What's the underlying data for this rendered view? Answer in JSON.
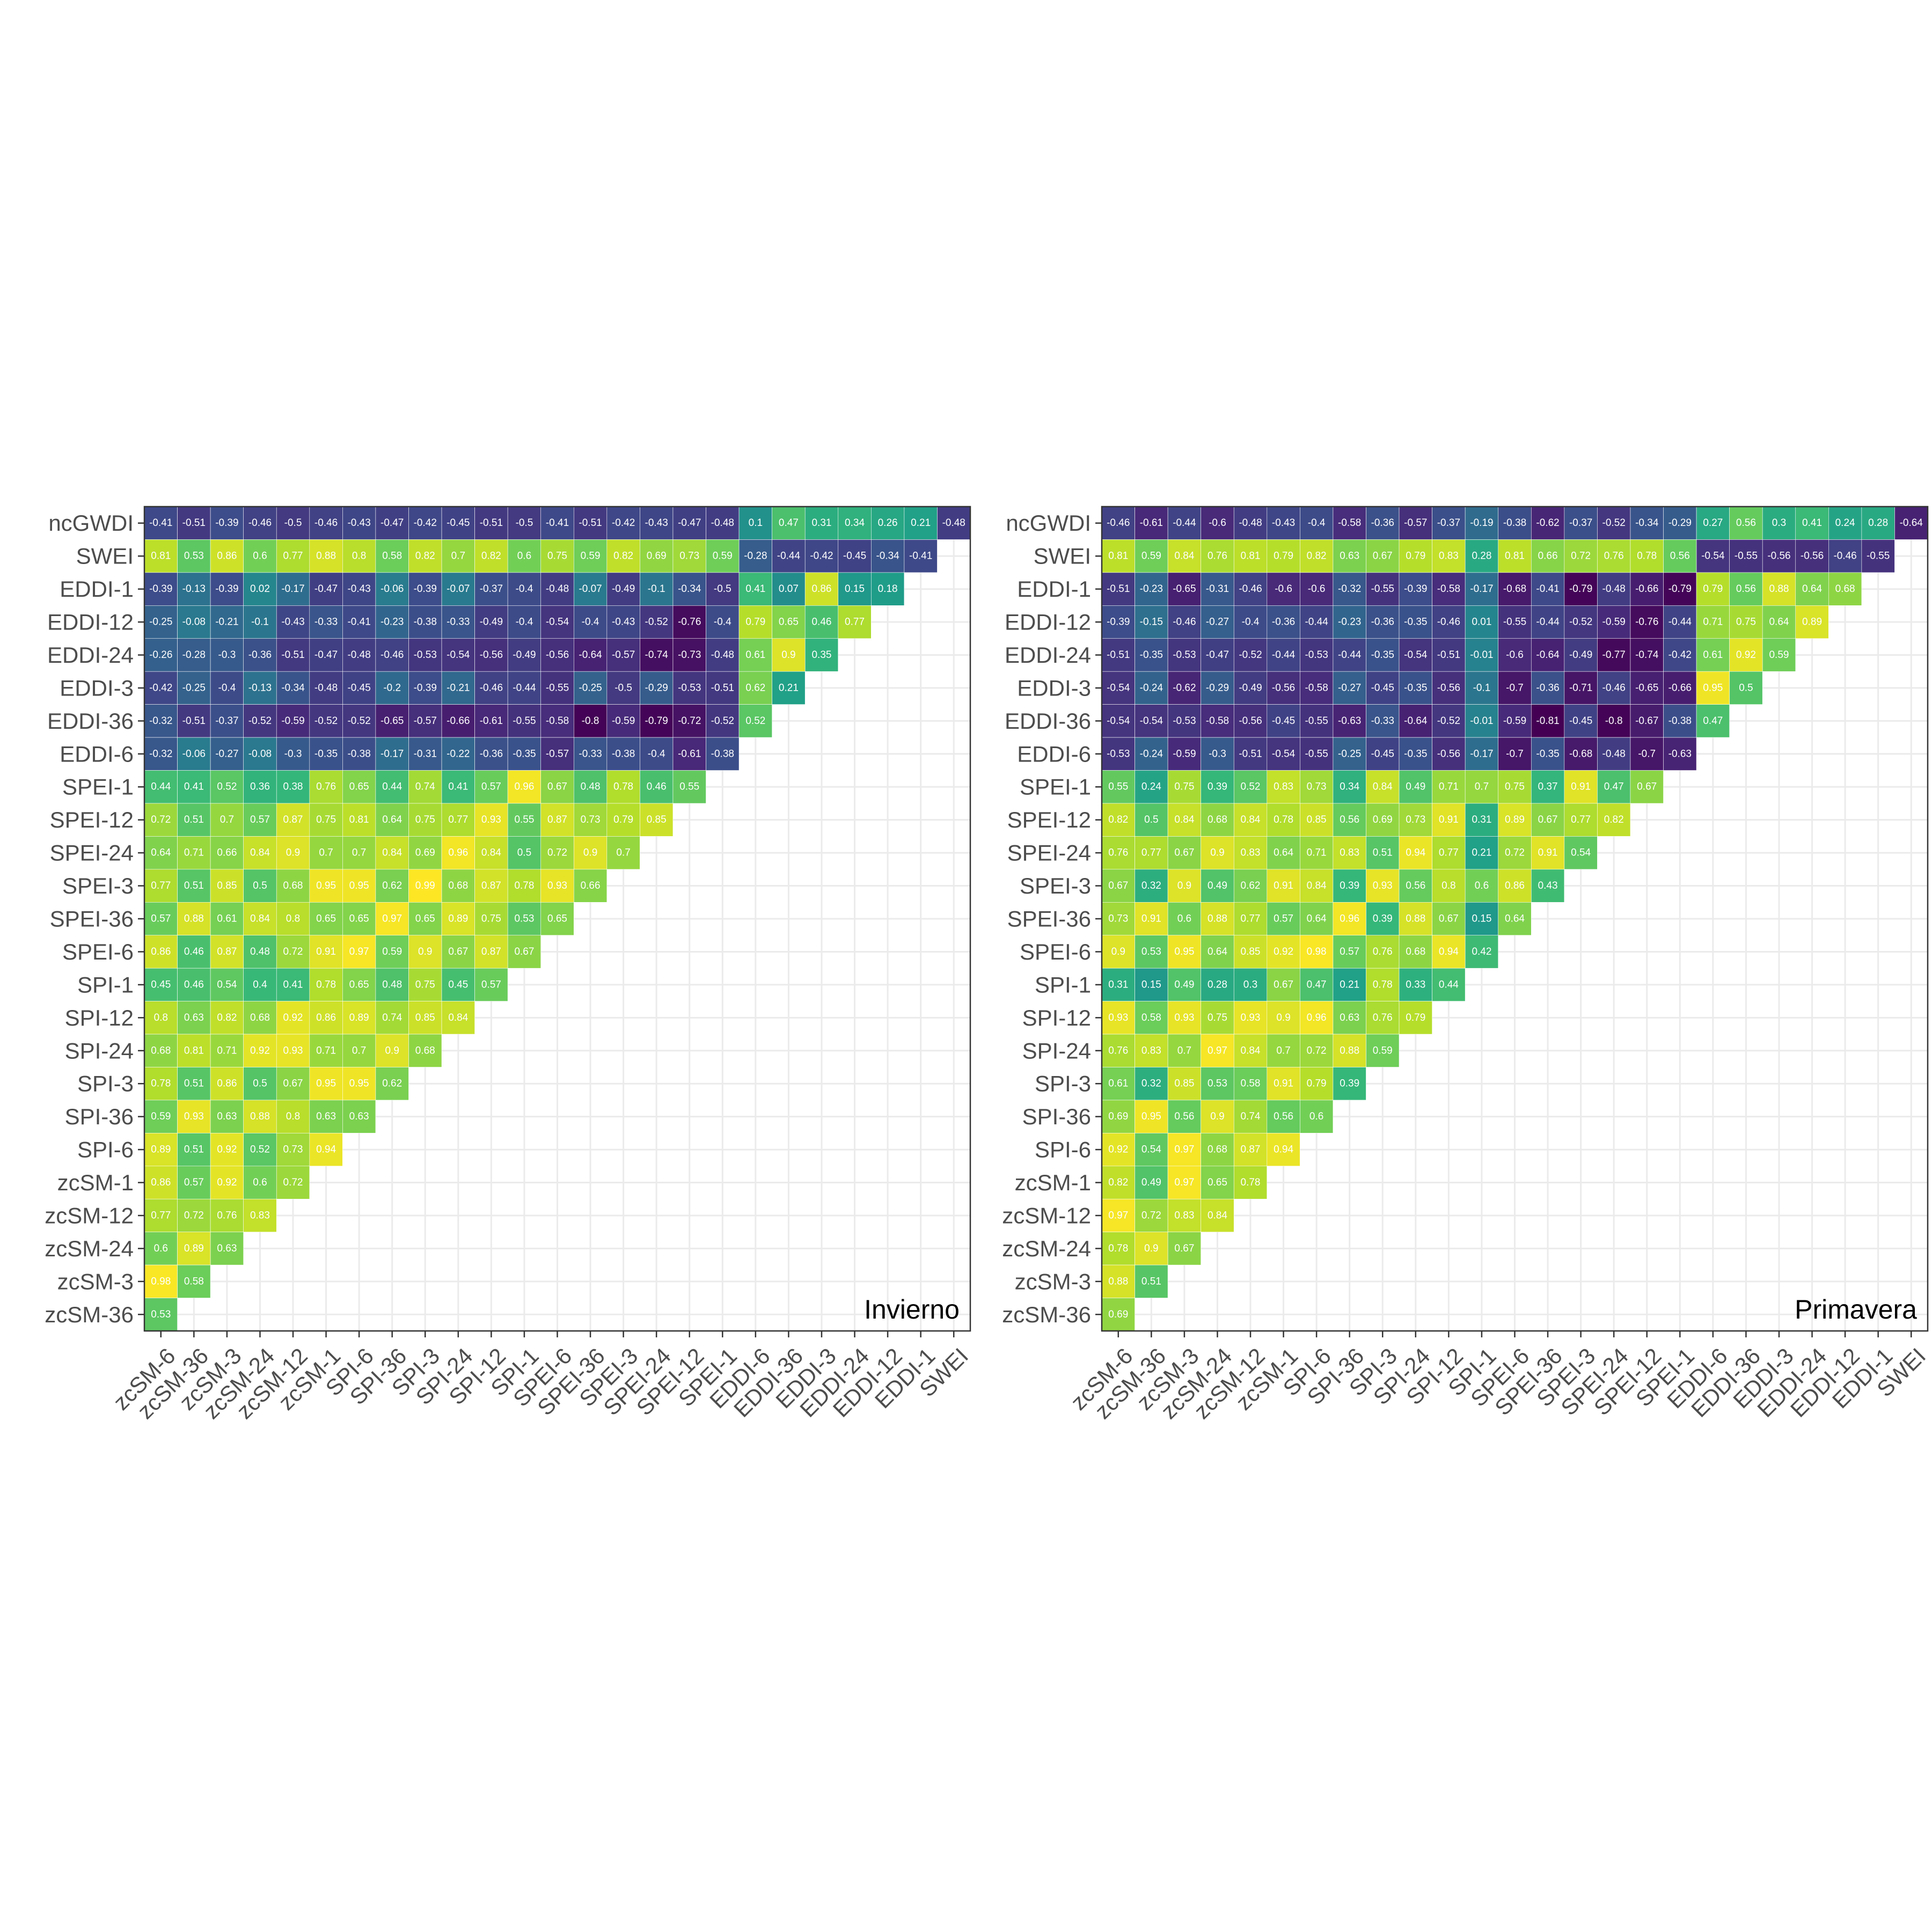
{
  "chart_data": [
    {
      "type": "heatmap",
      "panel_label": "Invierno",
      "x_categories": [
        "zcSM-6",
        "zcSM-36",
        "zcSM-3",
        "zcSM-24",
        "zcSM-12",
        "zcSM-1",
        "SPI-6",
        "SPI-36",
        "SPI-3",
        "SPI-24",
        "SPI-12",
        "SPI-1",
        "SPEI-6",
        "SPEI-36",
        "SPEI-3",
        "SPEI-24",
        "SPEI-12",
        "SPEI-1",
        "EDDI-6",
        "EDDI-36",
        "EDDI-3",
        "EDDI-24",
        "EDDI-12",
        "EDDI-1",
        "SWEI"
      ],
      "y_categories": [
        "ncGWDI",
        "SWEI",
        "EDDI-1",
        "EDDI-12",
        "EDDI-24",
        "EDDI-3",
        "EDDI-36",
        "EDDI-6",
        "SPEI-1",
        "SPEI-12",
        "SPEI-24",
        "SPEI-3",
        "SPEI-36",
        "SPEI-6",
        "SPI-1",
        "SPI-12",
        "SPI-24",
        "SPI-3",
        "SPI-36",
        "SPI-6",
        "zcSM-1",
        "zcSM-12",
        "zcSM-24",
        "zcSM-3",
        "zcSM-36"
      ],
      "value_labels": [
        [
          "-0.41",
          "-0.51",
          "-0.39",
          "-0.46",
          "-0.5",
          "-0.46",
          "-0.43",
          "-0.47",
          "-0.42",
          "-0.45",
          "-0.51",
          "-0.5",
          "-0.41",
          "-0.51",
          "-0.42",
          "-0.43",
          "-0.47",
          "-0.48",
          "0.1",
          "0.47",
          "0.31",
          "0.34",
          "0.26",
          "0.21",
          "-0.48"
        ],
        [
          "0.81",
          "0.53",
          "0.86",
          "0.6",
          "0.77",
          "0.88",
          "0.8",
          "0.58",
          "0.82",
          "0.7",
          "0.82",
          "0.6",
          "0.75",
          "0.59",
          "0.82",
          "0.69",
          "0.73",
          "0.59",
          "-0.28",
          "-0.44",
          "-0.42",
          "-0.45",
          "-0.34",
          "-0.41"
        ],
        [
          "-0.39",
          "-0.13",
          "-0.39",
          "0.02",
          "-0.17",
          "-0.47",
          "-0.43",
          "-0.06",
          "-0.39",
          "-0.07",
          "-0.37",
          "-0.4",
          "-0.48",
          "-0.07",
          "-0.49",
          "-0.1",
          "-0.34",
          "-0.5",
          "0.41",
          "0.07",
          "0.86",
          "0.15",
          "0.18"
        ],
        [
          "-0.25",
          "-0.08",
          "-0.21",
          "-0.1",
          "-0.43",
          "-0.33",
          "-0.41",
          "-0.23",
          "-0.38",
          "-0.33",
          "-0.49",
          "-0.4",
          "-0.54",
          "-0.4",
          "-0.43",
          "-0.52",
          "-0.76",
          "-0.4",
          "0.79",
          "0.65",
          "0.46",
          "0.77"
        ],
        [
          "-0.26",
          "-0.28",
          "-0.3",
          "-0.36",
          "-0.51",
          "-0.47",
          "-0.48",
          "-0.46",
          "-0.53",
          "-0.54",
          "-0.56",
          "-0.49",
          "-0.56",
          "-0.64",
          "-0.57",
          "-0.74",
          "-0.73",
          "-0.48",
          "0.61",
          "0.9",
          "0.35"
        ],
        [
          "-0.42",
          "-0.25",
          "-0.4",
          "-0.13",
          "-0.34",
          "-0.48",
          "-0.45",
          "-0.2",
          "-0.39",
          "-0.21",
          "-0.46",
          "-0.44",
          "-0.55",
          "-0.25",
          "-0.5",
          "-0.29",
          "-0.53",
          "-0.51",
          "0.62",
          "0.21"
        ],
        [
          "-0.32",
          "-0.51",
          "-0.37",
          "-0.52",
          "-0.59",
          "-0.52",
          "-0.52",
          "-0.65",
          "-0.57",
          "-0.66",
          "-0.61",
          "-0.55",
          "-0.58",
          "-0.8",
          "-0.59",
          "-0.79",
          "-0.72",
          "-0.52",
          "0.52"
        ],
        [
          "-0.32",
          "-0.06",
          "-0.27",
          "-0.08",
          "-0.3",
          "-0.35",
          "-0.38",
          "-0.17",
          "-0.31",
          "-0.22",
          "-0.36",
          "-0.35",
          "-0.57",
          "-0.33",
          "-0.38",
          "-0.4",
          "-0.61",
          "-0.38"
        ],
        [
          "0.44",
          "0.41",
          "0.52",
          "0.36",
          "0.38",
          "0.76",
          "0.65",
          "0.44",
          "0.74",
          "0.41",
          "0.57",
          "0.96",
          "0.67",
          "0.48",
          "0.78",
          "0.46",
          "0.55"
        ],
        [
          "0.72",
          "0.51",
          "0.7",
          "0.57",
          "0.87",
          "0.75",
          "0.81",
          "0.64",
          "0.75",
          "0.77",
          "0.93",
          "0.55",
          "0.87",
          "0.73",
          "0.79",
          "0.85"
        ],
        [
          "0.64",
          "0.71",
          "0.66",
          "0.84",
          "0.9",
          "0.7",
          "0.7",
          "0.84",
          "0.69",
          "0.96",
          "0.84",
          "0.5",
          "0.72",
          "0.9",
          "0.7"
        ],
        [
          "0.77",
          "0.51",
          "0.85",
          "0.5",
          "0.68",
          "0.95",
          "0.95",
          "0.62",
          "0.99",
          "0.68",
          "0.87",
          "0.78",
          "0.93",
          "0.66"
        ],
        [
          "0.57",
          "0.88",
          "0.61",
          "0.84",
          "0.8",
          "0.65",
          "0.65",
          "0.97",
          "0.65",
          "0.89",
          "0.75",
          "0.53",
          "0.65"
        ],
        [
          "0.86",
          "0.46",
          "0.87",
          "0.48",
          "0.72",
          "0.91",
          "0.97",
          "0.59",
          "0.9",
          "0.67",
          "0.87",
          "0.67"
        ],
        [
          "0.45",
          "0.46",
          "0.54",
          "0.4",
          "0.41",
          "0.78",
          "0.65",
          "0.48",
          "0.75",
          "0.45",
          "0.57"
        ],
        [
          "0.8",
          "0.63",
          "0.82",
          "0.68",
          "0.92",
          "0.86",
          "0.89",
          "0.74",
          "0.85",
          "0.84"
        ],
        [
          "0.68",
          "0.81",
          "0.71",
          "0.92",
          "0.93",
          "0.71",
          "0.7",
          "0.9",
          "0.68"
        ],
        [
          "0.78",
          "0.51",
          "0.86",
          "0.5",
          "0.67",
          "0.95",
          "0.95",
          "0.62"
        ],
        [
          "0.59",
          "0.93",
          "0.63",
          "0.88",
          "0.8",
          "0.63",
          "0.63"
        ],
        [
          "0.89",
          "0.51",
          "0.92",
          "0.52",
          "0.73",
          "0.94"
        ],
        [
          "0.86",
          "0.57",
          "0.92",
          "0.6",
          "0.72"
        ],
        [
          "0.77",
          "0.72",
          "0.76",
          "0.83"
        ],
        [
          "0.6",
          "0.89",
          "0.63"
        ],
        [
          "0.98",
          "0.58"
        ],
        [
          "0.53"
        ]
      ]
    },
    {
      "type": "heatmap",
      "panel_label": "Primavera",
      "x_categories": [
        "zcSM-6",
        "zcSM-36",
        "zcSM-3",
        "zcSM-24",
        "zcSM-12",
        "zcSM-1",
        "SPI-6",
        "SPI-36",
        "SPI-3",
        "SPI-24",
        "SPI-12",
        "SPI-1",
        "SPEI-6",
        "SPEI-36",
        "SPEI-3",
        "SPEI-24",
        "SPEI-12",
        "SPEI-1",
        "EDDI-6",
        "EDDI-36",
        "EDDI-3",
        "EDDI-24",
        "EDDI-12",
        "EDDI-1",
        "SWEI"
      ],
      "y_categories": [
        "ncGWDI",
        "SWEI",
        "EDDI-1",
        "EDDI-12",
        "EDDI-24",
        "EDDI-3",
        "EDDI-36",
        "EDDI-6",
        "SPEI-1",
        "SPEI-12",
        "SPEI-24",
        "SPEI-3",
        "SPEI-36",
        "SPEI-6",
        "SPI-1",
        "SPI-12",
        "SPI-24",
        "SPI-3",
        "SPI-36",
        "SPI-6",
        "zcSM-1",
        "zcSM-12",
        "zcSM-24",
        "zcSM-3",
        "zcSM-36"
      ],
      "value_labels": [
        [
          "-0.46",
          "-0.61",
          "-0.44",
          "-0.6",
          "-0.48",
          "-0.43",
          "-0.4",
          "-0.58",
          "-0.36",
          "-0.57",
          "-0.37",
          "-0.19",
          "-0.38",
          "-0.62",
          "-0.37",
          "-0.52",
          "-0.34",
          "-0.29",
          "0.27",
          "0.56",
          "0.3",
          "0.41",
          "0.24",
          "0.28",
          "-0.64"
        ],
        [
          "0.81",
          "0.59",
          "0.84",
          "0.76",
          "0.81",
          "0.79",
          "0.82",
          "0.63",
          "0.67",
          "0.79",
          "0.83",
          "0.28",
          "0.81",
          "0.66",
          "0.72",
          "0.76",
          "0.78",
          "0.56",
          "-0.54",
          "-0.55",
          "-0.56",
          "-0.56",
          "-0.46",
          "-0.55"
        ],
        [
          "-0.51",
          "-0.23",
          "-0.65",
          "-0.31",
          "-0.46",
          "-0.6",
          "-0.6",
          "-0.32",
          "-0.55",
          "-0.39",
          "-0.58",
          "-0.17",
          "-0.68",
          "-0.41",
          "-0.79",
          "-0.48",
          "-0.66",
          "-0.79",
          "0.79",
          "0.56",
          "0.88",
          "0.64",
          "0.68"
        ],
        [
          "-0.39",
          "-0.15",
          "-0.46",
          "-0.27",
          "-0.4",
          "-0.36",
          "-0.44",
          "-0.23",
          "-0.36",
          "-0.35",
          "-0.46",
          "0.01",
          "-0.55",
          "-0.44",
          "-0.52",
          "-0.59",
          "-0.76",
          "-0.44",
          "0.71",
          "0.75",
          "0.64",
          "0.89"
        ],
        [
          "-0.51",
          "-0.35",
          "-0.53",
          "-0.47",
          "-0.52",
          "-0.44",
          "-0.53",
          "-0.44",
          "-0.35",
          "-0.54",
          "-0.51",
          "-0.01",
          "-0.6",
          "-0.64",
          "-0.49",
          "-0.77",
          "-0.74",
          "-0.42",
          "0.61",
          "0.92",
          "0.59"
        ],
        [
          "-0.54",
          "-0.24",
          "-0.62",
          "-0.29",
          "-0.49",
          "-0.56",
          "-0.58",
          "-0.27",
          "-0.45",
          "-0.35",
          "-0.56",
          "-0.1",
          "-0.7",
          "-0.36",
          "-0.71",
          "-0.46",
          "-0.65",
          "-0.66",
          "0.95",
          "0.5"
        ],
        [
          "-0.54",
          "-0.54",
          "-0.53",
          "-0.58",
          "-0.56",
          "-0.45",
          "-0.55",
          "-0.63",
          "-0.33",
          "-0.64",
          "-0.52",
          "-0.01",
          "-0.59",
          "-0.81",
          "-0.45",
          "-0.8",
          "-0.67",
          "-0.38",
          "0.47"
        ],
        [
          "-0.53",
          "-0.24",
          "-0.59",
          "-0.3",
          "-0.51",
          "-0.54",
          "-0.55",
          "-0.25",
          "-0.45",
          "-0.35",
          "-0.56",
          "-0.17",
          "-0.7",
          "-0.35",
          "-0.68",
          "-0.48",
          "-0.7",
          "-0.63"
        ],
        [
          "0.55",
          "0.24",
          "0.75",
          "0.39",
          "0.52",
          "0.83",
          "0.73",
          "0.34",
          "0.84",
          "0.49",
          "0.71",
          "0.7",
          "0.75",
          "0.37",
          "0.91",
          "0.47",
          "0.67"
        ],
        [
          "0.82",
          "0.5",
          "0.84",
          "0.68",
          "0.84",
          "0.78",
          "0.85",
          "0.56",
          "0.69",
          "0.73",
          "0.91",
          "0.31",
          "0.89",
          "0.67",
          "0.77",
          "0.82"
        ],
        [
          "0.76",
          "0.77",
          "0.67",
          "0.9",
          "0.83",
          "0.64",
          "0.71",
          "0.83",
          "0.51",
          "0.94",
          "0.77",
          "0.21",
          "0.72",
          "0.91",
          "0.54"
        ],
        [
          "0.67",
          "0.32",
          "0.9",
          "0.49",
          "0.62",
          "0.91",
          "0.84",
          "0.39",
          "0.93",
          "0.56",
          "0.8",
          "0.6",
          "0.86",
          "0.43"
        ],
        [
          "0.73",
          "0.91",
          "0.6",
          "0.88",
          "0.77",
          "0.57",
          "0.64",
          "0.96",
          "0.39",
          "0.88",
          "0.67",
          "0.15",
          "0.64"
        ],
        [
          "0.9",
          "0.53",
          "0.95",
          "0.64",
          "0.85",
          "0.92",
          "0.98",
          "0.57",
          "0.76",
          "0.68",
          "0.94",
          "0.42"
        ],
        [
          "0.31",
          "0.15",
          "0.49",
          "0.28",
          "0.3",
          "0.67",
          "0.47",
          "0.21",
          "0.78",
          "0.33",
          "0.44"
        ],
        [
          "0.93",
          "0.58",
          "0.93",
          "0.75",
          "0.93",
          "0.9",
          "0.96",
          "0.63",
          "0.76",
          "0.79"
        ],
        [
          "0.76",
          "0.83",
          "0.7",
          "0.97",
          "0.84",
          "0.7",
          "0.72",
          "0.88",
          "0.59"
        ],
        [
          "0.61",
          "0.32",
          "0.85",
          "0.53",
          "0.58",
          "0.91",
          "0.79",
          "0.39"
        ],
        [
          "0.69",
          "0.95",
          "0.56",
          "0.9",
          "0.74",
          "0.56",
          "0.6"
        ],
        [
          "0.92",
          "0.54",
          "0.97",
          "0.68",
          "0.87",
          "0.94"
        ],
        [
          "0.82",
          "0.49",
          "0.97",
          "0.65",
          "0.78"
        ],
        [
          "0.97",
          "0.72",
          "0.83",
          "0.84"
        ],
        [
          "0.78",
          "0.9",
          "0.67"
        ],
        [
          "0.88",
          "0.51"
        ],
        [
          "0.69"
        ]
      ]
    }
  ]
}
